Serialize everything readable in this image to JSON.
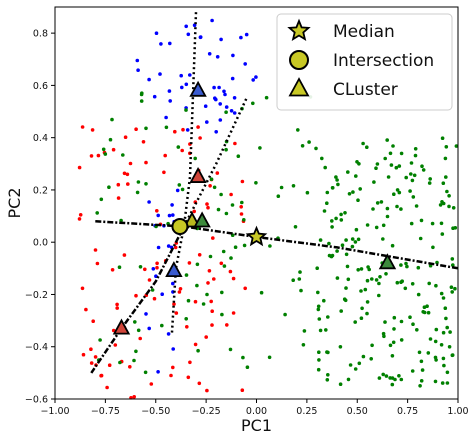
{
  "chart_data": {
    "type": "scatter",
    "xlabel": "PC1",
    "ylabel": "PC2",
    "xlim": [
      -1.0,
      1.0
    ],
    "ylim": [
      -0.6,
      0.9
    ],
    "xticks": [
      "−1.00",
      "−0.75",
      "−0.50",
      "−0.25",
      "0.00",
      "0.25",
      "0.50",
      "0.75",
      "1.00"
    ],
    "yticks": [
      "−0.6",
      "−0.4",
      "−0.2",
      "0.0",
      "0.2",
      "0.4",
      "0.6",
      "0.8"
    ],
    "grid": false,
    "legend_position": "top-right",
    "legend": [
      {
        "marker": "star",
        "label": "Median"
      },
      {
        "marker": "circle",
        "label": "Intersection"
      },
      {
        "marker": "triangle",
        "label": "CLuster"
      }
    ],
    "clusters": [
      {
        "color": "#0000ff",
        "x_range": [
          -0.6,
          0.0
        ],
        "y_range": [
          0.42,
          0.85
        ],
        "count": 48,
        "extra_x_range": [
          -0.55,
          -0.35
        ],
        "extra_y_range": [
          -0.5,
          0.2
        ],
        "extra_count": 22
      },
      {
        "color": "#ff0000",
        "x_range": [
          -0.9,
          -0.05
        ],
        "y_range": [
          -0.6,
          0.45
        ],
        "count": 115
      },
      {
        "color": "#008000",
        "x_range": [
          0.3,
          1.0
        ],
        "y_range": [
          -0.55,
          0.4
        ],
        "count": 230,
        "extra_x_range": [
          -0.8,
          0.3
        ],
        "extra_y_range": [
          -0.5,
          0.6
        ],
        "extra_count": 95
      }
    ],
    "lines": [
      {
        "style": "dotted",
        "points": [
          [
            -0.3,
            0.88
          ],
          [
            -0.33,
            0.25
          ],
          [
            -0.36,
            0.06
          ]
        ]
      },
      {
        "style": "dotted",
        "points": [
          [
            -0.36,
            0.06
          ],
          [
            -0.2,
            0.3
          ],
          [
            -0.05,
            0.55
          ]
        ]
      },
      {
        "style": "dashdot",
        "points": [
          [
            -0.8,
            0.08
          ],
          [
            -0.36,
            0.06
          ],
          [
            0.0,
            0.02
          ],
          [
            0.4,
            -0.02
          ],
          [
            1.0,
            -0.1
          ]
        ]
      },
      {
        "style": "dashdot",
        "points": [
          [
            -0.36,
            0.06
          ],
          [
            -0.5,
            -0.15
          ],
          [
            -0.67,
            -0.33
          ],
          [
            -0.82,
            -0.5
          ]
        ]
      },
      {
        "style": "dotted",
        "points": [
          [
            -0.36,
            0.06
          ],
          [
            -0.4,
            -0.1
          ],
          [
            -0.42,
            -0.35
          ]
        ]
      }
    ],
    "medians": [
      {
        "x": 0.0,
        "y": 0.02
      }
    ],
    "intersections": [
      {
        "x": -0.38,
        "y": 0.06
      }
    ],
    "cluster_centers": [
      {
        "x": -0.29,
        "y": 0.58,
        "color": "#3a5bd0"
      },
      {
        "x": -0.29,
        "y": 0.25,
        "color": "#d0453a"
      },
      {
        "x": -0.32,
        "y": 0.08,
        "color": "#b8b81e"
      },
      {
        "x": -0.27,
        "y": 0.08,
        "color": "#3c8a3c"
      },
      {
        "x": -0.41,
        "y": -0.11,
        "color": "#3a5bd0"
      },
      {
        "x": -0.67,
        "y": -0.33,
        "color": "#d0453a"
      },
      {
        "x": 0.65,
        "y": -0.08,
        "color": "#3c8a3c"
      }
    ]
  }
}
